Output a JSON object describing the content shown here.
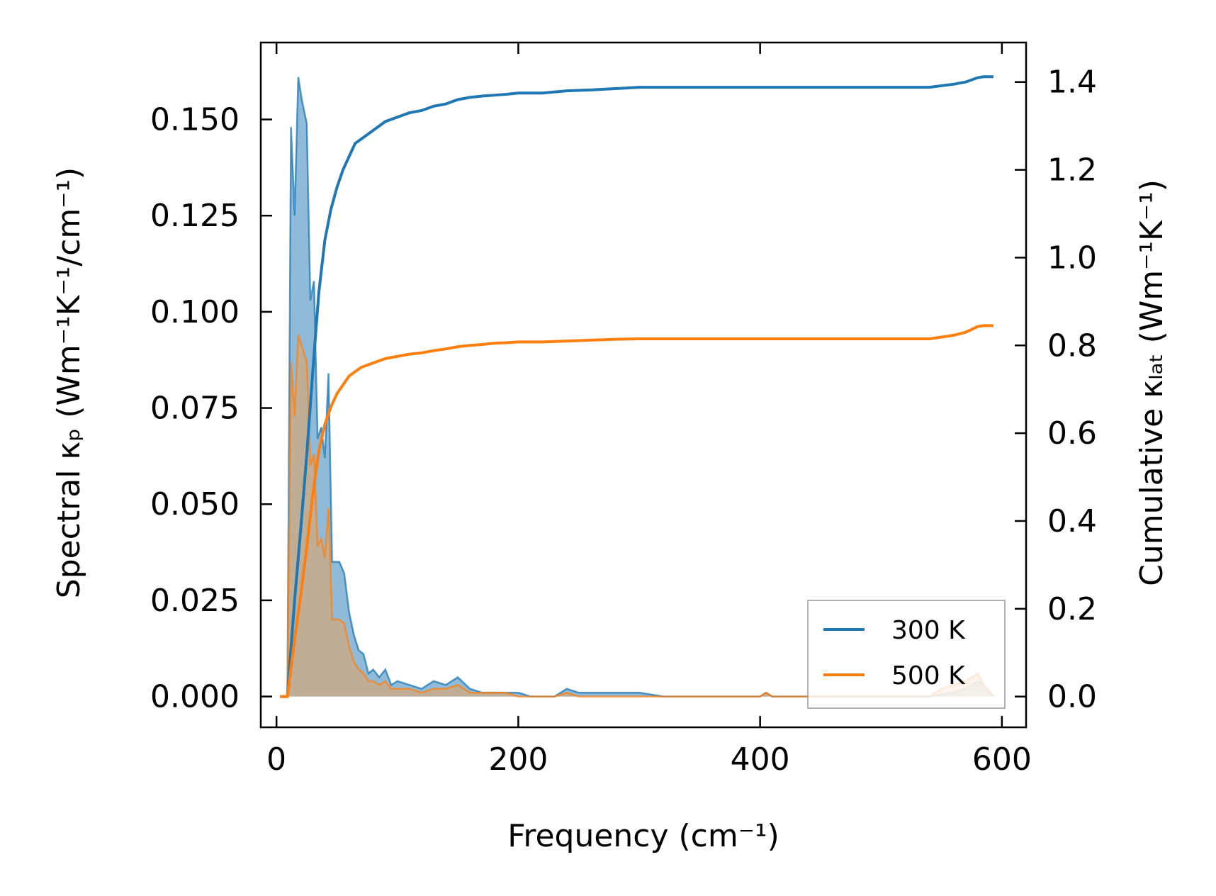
{
  "chart_data": {
    "type": "line",
    "title": "",
    "xlabel": "Frequency (cm⁻¹)",
    "ylabel_left": "Spectral κₚ (Wm⁻¹K⁻¹/cm⁻¹)",
    "ylabel_right": "Cumulative κₗₐₜ (Wm⁻¹K⁻¹)",
    "xlim": [
      -13,
      620
    ],
    "ylim_left": [
      -0.008,
      0.17
    ],
    "ylim_right": [
      -0.07,
      1.49
    ],
    "x_ticks": [
      0,
      200,
      400,
      600
    ],
    "x_tick_labels": [
      "0",
      "200",
      "400",
      "600"
    ],
    "y_left_ticks": [
      0.0,
      0.025,
      0.05,
      0.075,
      0.1,
      0.125,
      0.15
    ],
    "y_left_tick_labels": [
      "0.000",
      "0.025",
      "0.050",
      "0.075",
      "0.100",
      "0.125",
      "0.150"
    ],
    "y_right_ticks": [
      0.0,
      0.2,
      0.4,
      0.6,
      0.8,
      1.0,
      1.2,
      1.4
    ],
    "y_right_tick_labels": [
      "0.0",
      "0.2",
      "0.4",
      "0.6",
      "0.8",
      "1.0",
      "1.2",
      "1.4"
    ],
    "legend": {
      "position": "bottom-right",
      "entries": [
        "300 K",
        "500 K"
      ]
    },
    "series": [
      {
        "name": "300 K",
        "color": "#1f77b4",
        "fill_color": "#1f77b4",
        "spectral": {
          "x": [
            3,
            9,
            12,
            15,
            18,
            21,
            25,
            28,
            31,
            34,
            37,
            40,
            43,
            46,
            49,
            52,
            56,
            60,
            64,
            68,
            72,
            76,
            80,
            85,
            90,
            95,
            100,
            110,
            120,
            130,
            140,
            150,
            160,
            170,
            180,
            190,
            200,
            210,
            220,
            230,
            240,
            250,
            260,
            270,
            280,
            290,
            300,
            320,
            400,
            405,
            410,
            420,
            540,
            560,
            570,
            575,
            580,
            585,
            593
          ],
          "y": [
            0.0,
            0.0,
            0.148,
            0.125,
            0.161,
            0.155,
            0.149,
            0.103,
            0.108,
            0.067,
            0.07,
            0.062,
            0.084,
            0.035,
            0.035,
            0.035,
            0.032,
            0.022,
            0.016,
            0.012,
            0.011,
            0.006,
            0.007,
            0.005,
            0.007,
            0.003,
            0.004,
            0.003,
            0.002,
            0.004,
            0.003,
            0.005,
            0.002,
            0.001,
            0.001,
            0.001,
            0.001,
            0.0,
            0.0,
            0.0,
            0.002,
            0.001,
            0.001,
            0.001,
            0.001,
            0.001,
            0.001,
            0.0,
            0.0,
            0.001,
            0.0,
            0.0,
            0.0,
            0.001,
            0.002,
            0.003,
            0.004,
            0.003,
            0.0
          ]
        },
        "cumulative": {
          "x": [
            3,
            9,
            15,
            20,
            25,
            30,
            35,
            40,
            45,
            50,
            55,
            60,
            65,
            70,
            80,
            90,
            100,
            110,
            120,
            130,
            140,
            150,
            160,
            170,
            180,
            190,
            200,
            220,
            240,
            260,
            280,
            300,
            320,
            400,
            500,
            540,
            560,
            570,
            580,
            585,
            593
          ],
          "y": [
            0.0,
            0.0,
            0.22,
            0.38,
            0.55,
            0.74,
            0.92,
            1.04,
            1.11,
            1.16,
            1.2,
            1.23,
            1.26,
            1.27,
            1.29,
            1.31,
            1.32,
            1.33,
            1.335,
            1.345,
            1.35,
            1.36,
            1.365,
            1.368,
            1.37,
            1.372,
            1.375,
            1.375,
            1.38,
            1.382,
            1.385,
            1.388,
            1.388,
            1.388,
            1.388,
            1.388,
            1.395,
            1.4,
            1.41,
            1.412,
            1.412
          ]
        }
      },
      {
        "name": "500 K",
        "color": "#ff7f0e",
        "fill_color": "#e9a35e",
        "spectral": {
          "x": [
            3,
            9,
            12,
            15,
            18,
            21,
            25,
            28,
            31,
            34,
            37,
            40,
            43,
            46,
            49,
            52,
            56,
            60,
            64,
            68,
            72,
            76,
            80,
            85,
            90,
            95,
            100,
            110,
            120,
            130,
            140,
            150,
            160,
            170,
            180,
            190,
            200,
            210,
            220,
            230,
            240,
            250,
            300,
            400,
            405,
            410,
            420,
            540,
            550,
            560,
            570,
            575,
            580,
            585,
            593
          ],
          "y": [
            0.0,
            0.0,
            0.087,
            0.073,
            0.094,
            0.091,
            0.087,
            0.06,
            0.063,
            0.039,
            0.041,
            0.036,
            0.049,
            0.02,
            0.02,
            0.02,
            0.019,
            0.013,
            0.009,
            0.007,
            0.006,
            0.004,
            0.004,
            0.003,
            0.004,
            0.002,
            0.002,
            0.002,
            0.001,
            0.002,
            0.002,
            0.003,
            0.001,
            0.001,
            0.001,
            0.001,
            0.0,
            0.0,
            0.0,
            0.0,
            0.001,
            0.0,
            0.0,
            0.0,
            0.001,
            0.0,
            0.0,
            0.0,
            0.002,
            0.003,
            0.004,
            0.005,
            0.006,
            0.003,
            0.0
          ]
        },
        "cumulative": {
          "x": [
            3,
            9,
            15,
            20,
            25,
            30,
            35,
            40,
            45,
            50,
            55,
            60,
            65,
            70,
            80,
            90,
            100,
            110,
            120,
            130,
            140,
            150,
            160,
            170,
            180,
            190,
            200,
            220,
            240,
            260,
            280,
            300,
            320,
            400,
            500,
            540,
            560,
            570,
            580,
            585,
            593
          ],
          "y": [
            0.0,
            0.0,
            0.13,
            0.23,
            0.34,
            0.46,
            0.56,
            0.62,
            0.66,
            0.69,
            0.71,
            0.73,
            0.74,
            0.75,
            0.76,
            0.77,
            0.775,
            0.78,
            0.783,
            0.788,
            0.792,
            0.797,
            0.8,
            0.802,
            0.805,
            0.806,
            0.808,
            0.808,
            0.81,
            0.812,
            0.814,
            0.815,
            0.815,
            0.815,
            0.815,
            0.815,
            0.823,
            0.83,
            0.843,
            0.845,
            0.845
          ]
        }
      }
    ]
  }
}
